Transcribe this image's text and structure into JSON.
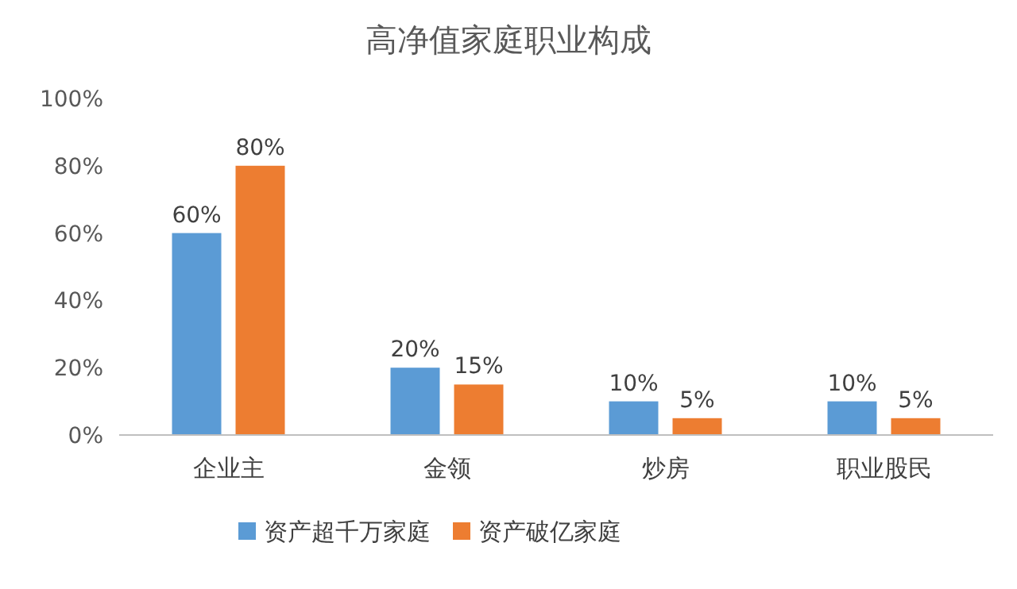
{
  "chart_data": {
    "type": "bar",
    "title": "高净值家庭职业构成",
    "categories": [
      "企业主",
      "金领",
      "炒房",
      "职业股民"
    ],
    "series": [
      {
        "name": "资产超千万家庭",
        "color": "#5b9bd5",
        "values": [
          60,
          20,
          10,
          10
        ],
        "value_labels": [
          "60%",
          "20%",
          "10%",
          "10%"
        ]
      },
      {
        "name": "资产破亿家庭",
        "color": "#ed7d31",
        "values": [
          80,
          15,
          5,
          5
        ],
        "value_labels": [
          "80%",
          "15%",
          "5%",
          "5%"
        ]
      }
    ],
    "ylim": [
      0,
      100
    ],
    "yticks": [
      {
        "value": 0,
        "label": "0%"
      },
      {
        "value": 20,
        "label": "20%"
      },
      {
        "value": 40,
        "label": "40%"
      },
      {
        "value": 60,
        "label": "60%"
      },
      {
        "value": 80,
        "label": "80%"
      },
      {
        "value": 100,
        "label": "100%"
      }
    ],
    "legend": "bottom"
  }
}
